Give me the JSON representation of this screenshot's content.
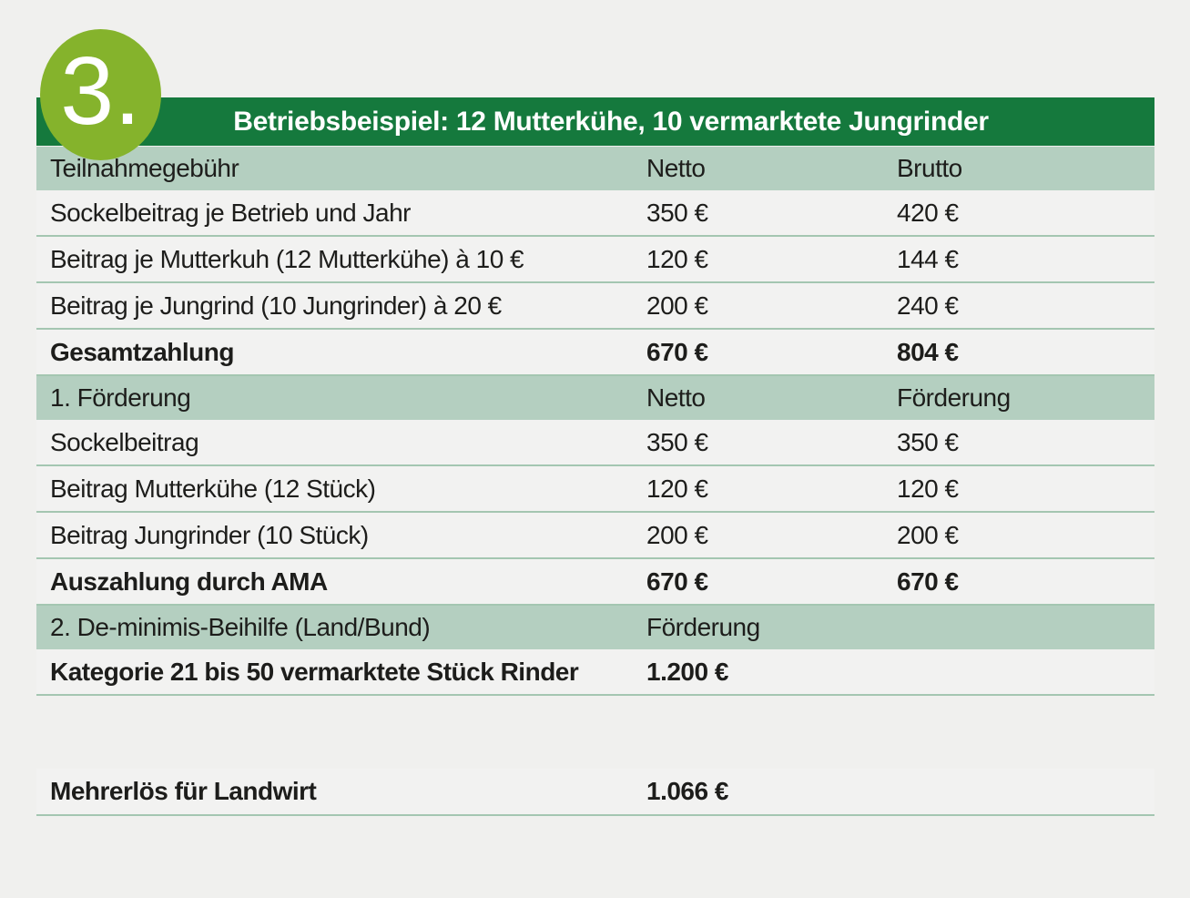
{
  "badge": {
    "number": "3."
  },
  "header": {
    "title": "Betriebsbeispiel: 12 Mutterkühe, 10 vermarktete Jungrinder"
  },
  "colors": {
    "title_bar_green": "#15793d",
    "section_row_green": "#b4cfc0",
    "badge_green": "#85b32c",
    "separator_green": "#a4c6b1",
    "background_gray": "#f0f0ee",
    "text_black": "#1d1d1b",
    "title_text_white": "#ffffff"
  },
  "chart_data": {
    "type": "table",
    "badge": "3.",
    "title": "Betriebsbeispiel: 12 Mutterkühe, 10 vermarktete Jungrinder",
    "sections": [
      {
        "header": {
          "label": "Teilnahmegebühr",
          "col2": "Netto",
          "col3": "Brutto"
        },
        "rows": [
          {
            "label": "Sockelbeitrag je Betrieb und Jahr",
            "col2": "350 €",
            "col3": "420 €",
            "bold": false
          },
          {
            "label": "Beitrag je Mutterkuh (12 Mutterkühe) à 10 €",
            "col2": "120 €",
            "col3": "144 €",
            "bold": false
          },
          {
            "label": "Beitrag je Jungrind (10 Jungrinder) à 20 €",
            "col2": "200 €",
            "col3": "240 €",
            "bold": false
          },
          {
            "label": "Gesamtzahlung",
            "col2": "670 €",
            "col3": "804 €",
            "bold": true
          }
        ]
      },
      {
        "header": {
          "label": "1. Förderung",
          "col2": "Netto",
          "col3": "Förderung"
        },
        "rows": [
          {
            "label": "Sockelbeitrag",
            "col2": "350 €",
            "col3": "350 €",
            "bold": false
          },
          {
            "label": "Beitrag Mutterkühe (12 Stück)",
            "col2": "120 €",
            "col3": "120 €",
            "bold": false
          },
          {
            "label": "Beitrag Jungrinder (10 Stück)",
            "col2": "200 €",
            "col3": "200 €",
            "bold": false
          },
          {
            "label": "Auszahlung durch AMA",
            "col2": "670 €",
            "col3": "670 €",
            "bold": true
          }
        ]
      },
      {
        "header": {
          "label": "2. De-minimis-Beihilfe (Land/Bund)",
          "col2": "Förderung",
          "col3": ""
        },
        "rows": [
          {
            "label": "Kategorie 21 bis 50 vermarktete Stück Rinder",
            "col2": "1.200 €",
            "col3": "",
            "bold": true
          }
        ]
      }
    ],
    "summary": {
      "label": "Mehrerlös für Landwirt",
      "col2": "1.066 €",
      "col3": ""
    }
  }
}
